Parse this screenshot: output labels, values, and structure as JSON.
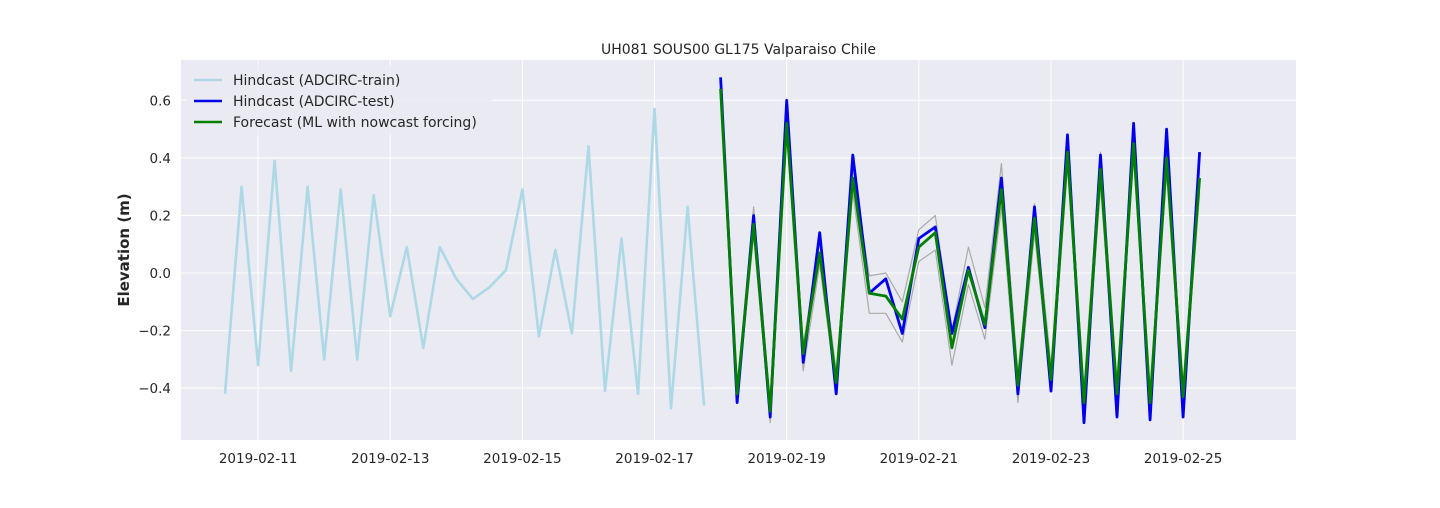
{
  "chart_data": {
    "type": "line",
    "title": "UH081 SOUS00 GL175 Valparaiso Chile",
    "xlabel": "",
    "ylabel": "Elevation (m)",
    "xlim": [
      "2019-02-09T20:00",
      "2019-02-26T17:00"
    ],
    "ylim": [
      -0.58,
      0.74
    ],
    "xticks": [
      "2019-02-11",
      "2019-02-13",
      "2019-02-15",
      "2019-02-17",
      "2019-02-19",
      "2019-02-21",
      "2019-02-23",
      "2019-02-25"
    ],
    "yticks": [
      -0.4,
      -0.2,
      0.0,
      0.2,
      0.4,
      0.6
    ],
    "ytick_labels": [
      "−0.4",
      "−0.2",
      "0.0",
      "0.2",
      "0.4",
      "0.6"
    ],
    "grid": true,
    "legend_position": "top-left",
    "colors": {
      "background": "#eaeaf2",
      "grid": "#ffffff",
      "train": "#add8e6",
      "test": "#0000ee",
      "forecast": "#008000",
      "ensemble": "#aaaaaa"
    },
    "series": [
      {
        "name": "Hindcast (ADCIRC-train)",
        "color": "#add8e6",
        "x": [
          "2019-02-10T12:00",
          "2019-02-10T18:00",
          "2019-02-11T00:00",
          "2019-02-11T06:00",
          "2019-02-11T12:00",
          "2019-02-11T18:00",
          "2019-02-12T00:00",
          "2019-02-12T06:00",
          "2019-02-12T12:00",
          "2019-02-12T18:00",
          "2019-02-13T00:00",
          "2019-02-13T06:00",
          "2019-02-13T12:00",
          "2019-02-13T18:00",
          "2019-02-14T00:00",
          "2019-02-14T06:00",
          "2019-02-14T12:00",
          "2019-02-14T18:00",
          "2019-02-15T00:00",
          "2019-02-15T06:00",
          "2019-02-15T12:00",
          "2019-02-15T18:00",
          "2019-02-16T00:00",
          "2019-02-16T06:00",
          "2019-02-16T12:00",
          "2019-02-16T18:00",
          "2019-02-17T00:00",
          "2019-02-17T06:00",
          "2019-02-17T12:00",
          "2019-02-17T18:00"
        ],
        "values": [
          -0.42,
          0.3,
          -0.32,
          0.39,
          -0.34,
          0.3,
          -0.3,
          0.29,
          -0.3,
          0.27,
          -0.15,
          0.09,
          -0.26,
          0.09,
          -0.02,
          -0.09,
          -0.05,
          0.01,
          0.29,
          -0.22,
          0.08,
          -0.21,
          0.44,
          -0.41,
          0.12,
          -0.42,
          0.57,
          -0.47,
          0.23,
          -0.46
        ]
      },
      {
        "name": "Hindcast (ADCIRC-test)",
        "color": "#0000ee",
        "x": [
          "2019-02-18T00:00",
          "2019-02-18T06:00",
          "2019-02-18T12:00",
          "2019-02-18T18:00",
          "2019-02-19T00:00",
          "2019-02-19T06:00",
          "2019-02-19T12:00",
          "2019-02-19T18:00",
          "2019-02-20T00:00",
          "2019-02-20T06:00",
          "2019-02-20T12:00",
          "2019-02-20T18:00",
          "2019-02-21T00:00",
          "2019-02-21T06:00",
          "2019-02-21T12:00",
          "2019-02-21T18:00",
          "2019-02-22T00:00",
          "2019-02-22T06:00",
          "2019-02-22T12:00",
          "2019-02-22T18:00",
          "2019-02-23T00:00",
          "2019-02-23T06:00",
          "2019-02-23T12:00",
          "2019-02-23T18:00",
          "2019-02-24T00:00",
          "2019-02-24T06:00",
          "2019-02-24T12:00",
          "2019-02-24T18:00",
          "2019-02-25T00:00",
          "2019-02-25T06:00"
        ],
        "values": [
          0.68,
          -0.45,
          0.2,
          -0.5,
          0.6,
          -0.31,
          0.14,
          -0.42,
          0.41,
          -0.07,
          -0.02,
          -0.21,
          0.12,
          0.16,
          -0.21,
          0.02,
          -0.19,
          0.33,
          -0.42,
          0.23,
          -0.41,
          0.48,
          -0.52,
          0.41,
          -0.5,
          0.52,
          -0.51,
          0.5,
          -0.5,
          0.42
        ]
      },
      {
        "name": "Forecast (ML with nowcast forcing)",
        "color": "#008000",
        "x": [
          "2019-02-18T00:00",
          "2019-02-18T06:00",
          "2019-02-18T12:00",
          "2019-02-18T18:00",
          "2019-02-19T00:00",
          "2019-02-19T06:00",
          "2019-02-19T12:00",
          "2019-02-19T18:00",
          "2019-02-20T00:00",
          "2019-02-20T06:00",
          "2019-02-20T12:00",
          "2019-02-20T18:00",
          "2019-02-21T00:00",
          "2019-02-21T06:00",
          "2019-02-21T12:00",
          "2019-02-21T18:00",
          "2019-02-22T00:00",
          "2019-02-22T06:00",
          "2019-02-22T12:00",
          "2019-02-22T18:00",
          "2019-02-23T00:00",
          "2019-02-23T06:00",
          "2019-02-23T12:00",
          "2019-02-23T18:00",
          "2019-02-24T00:00",
          "2019-02-24T06:00",
          "2019-02-24T12:00",
          "2019-02-24T18:00",
          "2019-02-25T00:00",
          "2019-02-25T06:00"
        ],
        "values": [
          0.64,
          -0.42,
          0.17,
          -0.48,
          0.52,
          -0.28,
          0.07,
          -0.38,
          0.33,
          -0.07,
          -0.08,
          -0.16,
          0.09,
          0.14,
          -0.26,
          0.01,
          -0.18,
          0.29,
          -0.39,
          0.19,
          -0.37,
          0.42,
          -0.45,
          0.36,
          -0.42,
          0.45,
          -0.45,
          0.4,
          -0.43,
          0.33
        ]
      }
    ],
    "ensemble_band": {
      "x": [
        "2019-02-18T00:00",
        "2019-02-18T06:00",
        "2019-02-18T12:00",
        "2019-02-18T18:00",
        "2019-02-19T00:00",
        "2019-02-19T06:00",
        "2019-02-19T12:00",
        "2019-02-19T18:00",
        "2019-02-20T00:00",
        "2019-02-20T06:00",
        "2019-02-20T12:00",
        "2019-02-20T18:00",
        "2019-02-21T00:00",
        "2019-02-21T06:00",
        "2019-02-21T12:00",
        "2019-02-21T18:00",
        "2019-02-22T00:00",
        "2019-02-22T06:00",
        "2019-02-22T12:00",
        "2019-02-22T18:00",
        "2019-02-23T00:00",
        "2019-02-23T06:00",
        "2019-02-23T12:00",
        "2019-02-23T18:00",
        "2019-02-24T00:00",
        "2019-02-24T06:00",
        "2019-02-24T12:00",
        "2019-02-24T18:00",
        "2019-02-25T00:00",
        "2019-02-25T06:00"
      ],
      "upper": [
        0.66,
        -0.4,
        0.23,
        -0.45,
        0.55,
        -0.25,
        0.11,
        -0.34,
        0.37,
        -0.01,
        0.0,
        -0.1,
        0.15,
        0.2,
        -0.2,
        0.09,
        -0.12,
        0.38,
        -0.35,
        0.24,
        -0.32,
        0.46,
        -0.4,
        0.42,
        -0.38,
        0.48,
        -0.4,
        0.43,
        -0.38,
        0.36
      ],
      "lower": [
        0.62,
        -0.45,
        0.13,
        -0.52,
        0.48,
        -0.34,
        0.03,
        -0.41,
        0.28,
        -0.14,
        -0.14,
        -0.24,
        0.04,
        0.08,
        -0.32,
        -0.04,
        -0.23,
        0.23,
        -0.45,
        0.14,
        -0.41,
        0.37,
        -0.49,
        0.3,
        -0.46,
        0.4,
        -0.48,
        0.35,
        -0.47,
        0.28
      ]
    }
  }
}
